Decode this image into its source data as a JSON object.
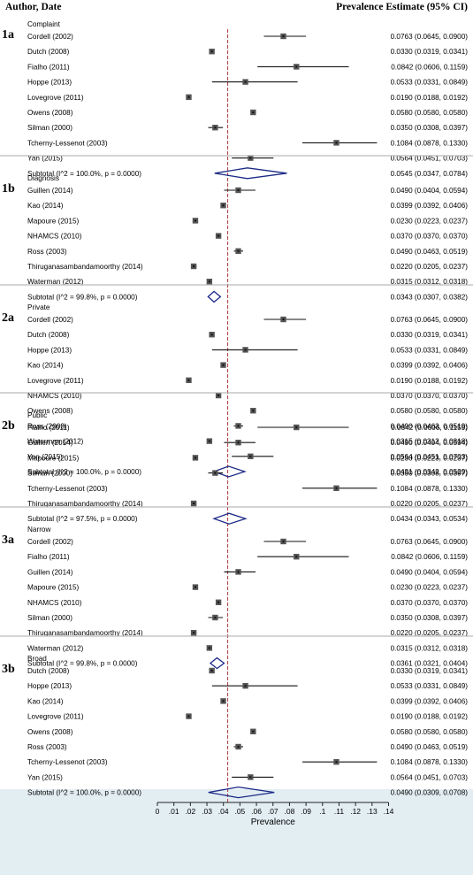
{
  "header": {
    "left": "Author, Date",
    "right": "Prevalence Estimate (95% CI)"
  },
  "colors": {
    "marker": "#555555",
    "diamond": "#1c2a86",
    "reference_line": "#b03a3a",
    "axis_band": "#e3eef3",
    "separator": "#aaaaaa"
  },
  "chart_data": {
    "type": "forest",
    "xlabel": "Prevalence",
    "xlim": [
      0,
      0.14
    ],
    "xticks": [
      {
        "v": 0,
        "label": "0"
      },
      {
        "v": 0.01,
        "label": ".01"
      },
      {
        "v": 0.02,
        "label": ".02"
      },
      {
        "v": 0.03,
        "label": ".03"
      },
      {
        "v": 0.04,
        "label": ".04"
      },
      {
        "v": 0.05,
        "label": ".05"
      },
      {
        "v": 0.06,
        "label": ".06"
      },
      {
        "v": 0.07,
        "label": ".07"
      },
      {
        "v": 0.08,
        "label": ".08"
      },
      {
        "v": 0.09,
        "label": ".09"
      },
      {
        "v": 0.1,
        "label": ".1"
      },
      {
        "v": 0.11,
        "label": ".11"
      },
      {
        "v": 0.12,
        "label": ".12"
      },
      {
        "v": 0.13,
        "label": ".13"
      },
      {
        "v": 0.14,
        "label": ".14"
      }
    ],
    "reference_line": 0.0426,
    "groups": [
      {
        "tag": "1a",
        "name": "Complaint",
        "studies": [
          {
            "label": "Cordell (2002)",
            "est": 0.0763,
            "lo": 0.0645,
            "hi": 0.09,
            "ci": "0.0763 (0.0645, 0.0900)"
          },
          {
            "label": "Dutch (2008)",
            "est": 0.033,
            "lo": 0.0319,
            "hi": 0.0341,
            "ci": "0.0330 (0.0319, 0.0341)"
          },
          {
            "label": "Fialho (2011)",
            "est": 0.0842,
            "lo": 0.0606,
            "hi": 0.1159,
            "ci": "0.0842 (0.0606, 0.1159)"
          },
          {
            "label": "Hoppe (2013)",
            "est": 0.0533,
            "lo": 0.0331,
            "hi": 0.0849,
            "ci": "0.0533 (0.0331, 0.0849)"
          },
          {
            "label": "Lovegrove (2011)",
            "est": 0.019,
            "lo": 0.0188,
            "hi": 0.0192,
            "ci": "0.0190 (0.0188, 0.0192)"
          },
          {
            "label": "Owens (2008)",
            "est": 0.058,
            "lo": 0.058,
            "hi": 0.058,
            "ci": "0.0580 (0.0580, 0.0580)"
          },
          {
            "label": "Silman (2000)",
            "est": 0.035,
            "lo": 0.0308,
            "hi": 0.0397,
            "ci": "0.0350 (0.0308, 0.0397)"
          },
          {
            "label": "Tcherny-Lessenot (2003)",
            "est": 0.1084,
            "lo": 0.0878,
            "hi": 0.133,
            "ci": "0.1084 (0.0878, 0.1330)"
          },
          {
            "label": "Yan (2015)",
            "est": 0.0564,
            "lo": 0.0451,
            "hi": 0.0703,
            "ci": "0.0564 (0.0451, 0.0703)"
          }
        ],
        "subtotal": {
          "label": "Subtotal  (I^2 = 100.0%, p = 0.0000)",
          "est": 0.0545,
          "lo": 0.0347,
          "hi": 0.0784,
          "ci": "0.0545 (0.0347, 0.0784)"
        }
      },
      {
        "tag": "1b",
        "name": "Diagnosis",
        "studies": [
          {
            "label": "Guillen (2014)",
            "est": 0.049,
            "lo": 0.0404,
            "hi": 0.0594,
            "ci": "0.0490 (0.0404, 0.0594)"
          },
          {
            "label": "Kao (2014)",
            "est": 0.0399,
            "lo": 0.0392,
            "hi": 0.0406,
            "ci": "0.0399 (0.0392, 0.0406)"
          },
          {
            "label": "Mapoure (2015)",
            "est": 0.023,
            "lo": 0.0223,
            "hi": 0.0237,
            "ci": "0.0230 (0.0223, 0.0237)"
          },
          {
            "label": "NHAMCS (2010)",
            "est": 0.037,
            "lo": 0.037,
            "hi": 0.037,
            "ci": "0.0370 (0.0370, 0.0370)"
          },
          {
            "label": "Ross (2003)",
            "est": 0.049,
            "lo": 0.0463,
            "hi": 0.0519,
            "ci": "0.0490 (0.0463, 0.0519)"
          },
          {
            "label": "Thiruganasambandamoorthy (2014)",
            "est": 0.022,
            "lo": 0.0205,
            "hi": 0.0237,
            "ci": "0.0220 (0.0205, 0.0237)"
          },
          {
            "label": "Waterman (2012)",
            "est": 0.0315,
            "lo": 0.0312,
            "hi": 0.0318,
            "ci": "0.0315 (0.0312, 0.0318)"
          }
        ],
        "subtotal": {
          "label": "Subtotal  (I^2 = 99.8%, p = 0.0000)",
          "est": 0.0343,
          "lo": 0.0307,
          "hi": 0.0382,
          "ci": "0.0343 (0.0307, 0.0382)"
        }
      },
      {
        "tag": "2a",
        "name": "Private",
        "studies": [
          {
            "label": "Cordell (2002)",
            "est": 0.0763,
            "lo": 0.0645,
            "hi": 0.09,
            "ci": "0.0763 (0.0645, 0.0900)"
          },
          {
            "label": "Dutch (2008)",
            "est": 0.033,
            "lo": 0.0319,
            "hi": 0.0341,
            "ci": "0.0330 (0.0319, 0.0341)"
          },
          {
            "label": "Hoppe (2013)",
            "est": 0.0533,
            "lo": 0.0331,
            "hi": 0.0849,
            "ci": "0.0533 (0.0331, 0.0849)"
          },
          {
            "label": "Kao (2014)",
            "est": 0.0399,
            "lo": 0.0392,
            "hi": 0.0406,
            "ci": "0.0399 (0.0392, 0.0406)"
          },
          {
            "label": "Lovegrove (2011)",
            "est": 0.019,
            "lo": 0.0188,
            "hi": 0.0192,
            "ci": "0.0190 (0.0188, 0.0192)"
          },
          {
            "label": "NHAMCS (2010)",
            "est": 0.037,
            "lo": 0.037,
            "hi": 0.037,
            "ci": "0.0370 (0.0370, 0.0370)"
          },
          {
            "label": "Owens (2008)",
            "est": 0.058,
            "lo": 0.058,
            "hi": 0.058,
            "ci": "0.0580 (0.0580, 0.0580)"
          },
          {
            "label": "Ross (2003)",
            "est": 0.049,
            "lo": 0.0463,
            "hi": 0.0519,
            "ci": "0.0490 (0.0463, 0.0519)"
          },
          {
            "label": "Waterman (2012)",
            "est": 0.0315,
            "lo": 0.0312,
            "hi": 0.0318,
            "ci": "0.0315 (0.0312, 0.0318)"
          },
          {
            "label": "Yan (2015)",
            "est": 0.0564,
            "lo": 0.0451,
            "hi": 0.0703,
            "ci": "0.0564 (0.0451, 0.0703)"
          }
        ],
        "subtotal": {
          "label": "Subtotal  (I^2 = 100.0%, p = 0.0000)",
          "est": 0.0431,
          "lo": 0.0342,
          "hi": 0.0529,
          "ci": "0.0431 (0.0342, 0.0529)"
        }
      },
      {
        "tag": "2b",
        "name": "Public",
        "studies": [
          {
            "label": "Fialho (2011)",
            "est": 0.0842,
            "lo": 0.0606,
            "hi": 0.1159,
            "ci": "0.0842 (0.0606, 0.1159)"
          },
          {
            "label": "Guillen (2014)",
            "est": 0.049,
            "lo": 0.0404,
            "hi": 0.0594,
            "ci": "0.0490 (0.0404, 0.0594)"
          },
          {
            "label": "Mapoure (2015)",
            "est": 0.023,
            "lo": 0.0223,
            "hi": 0.0237,
            "ci": "0.0230 (0.0223, 0.0237)"
          },
          {
            "label": "Silman (2000)",
            "est": 0.035,
            "lo": 0.0308,
            "hi": 0.0397,
            "ci": "0.0350 (0.0308, 0.0397)"
          },
          {
            "label": "Tcherny-Lessenot (2003)",
            "est": 0.1084,
            "lo": 0.0878,
            "hi": 0.133,
            "ci": "0.1084 (0.0878, 0.1330)"
          },
          {
            "label": "Thiruganasambandamoorthy (2014)",
            "est": 0.022,
            "lo": 0.0205,
            "hi": 0.0237,
            "ci": "0.0220 (0.0205, 0.0237)"
          }
        ],
        "subtotal": {
          "label": "Subtotal  (I^2 = 97.5%, p = 0.0000)",
          "est": 0.0434,
          "lo": 0.0343,
          "hi": 0.0534,
          "ci": "0.0434 (0.0343, 0.0534)"
        }
      },
      {
        "tag": "3a",
        "name": "Narrow",
        "studies": [
          {
            "label": "Cordell (2002)",
            "est": 0.0763,
            "lo": 0.0645,
            "hi": 0.09,
            "ci": "0.0763 (0.0645, 0.0900)"
          },
          {
            "label": "Fialho (2011)",
            "est": 0.0842,
            "lo": 0.0606,
            "hi": 0.1159,
            "ci": "0.0842 (0.0606, 0.1159)"
          },
          {
            "label": "Guillen (2014)",
            "est": 0.049,
            "lo": 0.0404,
            "hi": 0.0594,
            "ci": "0.0490 (0.0404, 0.0594)"
          },
          {
            "label": "Mapoure (2015)",
            "est": 0.023,
            "lo": 0.0223,
            "hi": 0.0237,
            "ci": "0.0230 (0.0223, 0.0237)"
          },
          {
            "label": "NHAMCS (2010)",
            "est": 0.037,
            "lo": 0.037,
            "hi": 0.037,
            "ci": "0.0370 (0.0370, 0.0370)"
          },
          {
            "label": "Silman (2000)",
            "est": 0.035,
            "lo": 0.0308,
            "hi": 0.0397,
            "ci": "0.0350 (0.0308, 0.0397)"
          },
          {
            "label": "Thiruganasambandamoorthy (2014)",
            "est": 0.022,
            "lo": 0.0205,
            "hi": 0.0237,
            "ci": "0.0220 (0.0205, 0.0237)"
          },
          {
            "label": "Waterman (2012)",
            "est": 0.0315,
            "lo": 0.0312,
            "hi": 0.0318,
            "ci": "0.0315 (0.0312, 0.0318)"
          }
        ],
        "subtotal": {
          "label": "Subtotal  (I^2 = 99.8%, p = 0.0000)",
          "est": 0.0361,
          "lo": 0.0321,
          "hi": 0.0404,
          "ci": "0.0361 (0.0321, 0.0404)"
        }
      },
      {
        "tag": "3b",
        "name": "Broad",
        "studies": [
          {
            "label": "Dutch (2008)",
            "est": 0.033,
            "lo": 0.0319,
            "hi": 0.0341,
            "ci": "0.0330 (0.0319, 0.0341)"
          },
          {
            "label": "Hoppe (2013)",
            "est": 0.0533,
            "lo": 0.0331,
            "hi": 0.0849,
            "ci": "0.0533 (0.0331, 0.0849)"
          },
          {
            "label": "Kao (2014)",
            "est": 0.0399,
            "lo": 0.0392,
            "hi": 0.0406,
            "ci": "0.0399 (0.0392, 0.0406)"
          },
          {
            "label": "Lovegrove (2011)",
            "est": 0.019,
            "lo": 0.0188,
            "hi": 0.0192,
            "ci": "0.0190 (0.0188, 0.0192)"
          },
          {
            "label": "Owens (2008)",
            "est": 0.058,
            "lo": 0.058,
            "hi": 0.058,
            "ci": "0.0580 (0.0580, 0.0580)"
          },
          {
            "label": "Ross (2003)",
            "est": 0.049,
            "lo": 0.0463,
            "hi": 0.0519,
            "ci": "0.0490 (0.0463, 0.0519)"
          },
          {
            "label": "Tcherny-Lessenot (2003)",
            "est": 0.1084,
            "lo": 0.0878,
            "hi": 0.133,
            "ci": "0.1084 (0.0878, 0.1330)"
          },
          {
            "label": "Yan (2015)",
            "est": 0.0564,
            "lo": 0.0451,
            "hi": 0.0703,
            "ci": "0.0564 (0.0451, 0.0703)"
          }
        ],
        "subtotal": {
          "label": "Subtotal  (I^2 = 100.0%, p = 0.0000)",
          "est": 0.049,
          "lo": 0.0309,
          "hi": 0.0708,
          "ci": "0.0490 (0.0309, 0.0708)"
        }
      }
    ]
  }
}
